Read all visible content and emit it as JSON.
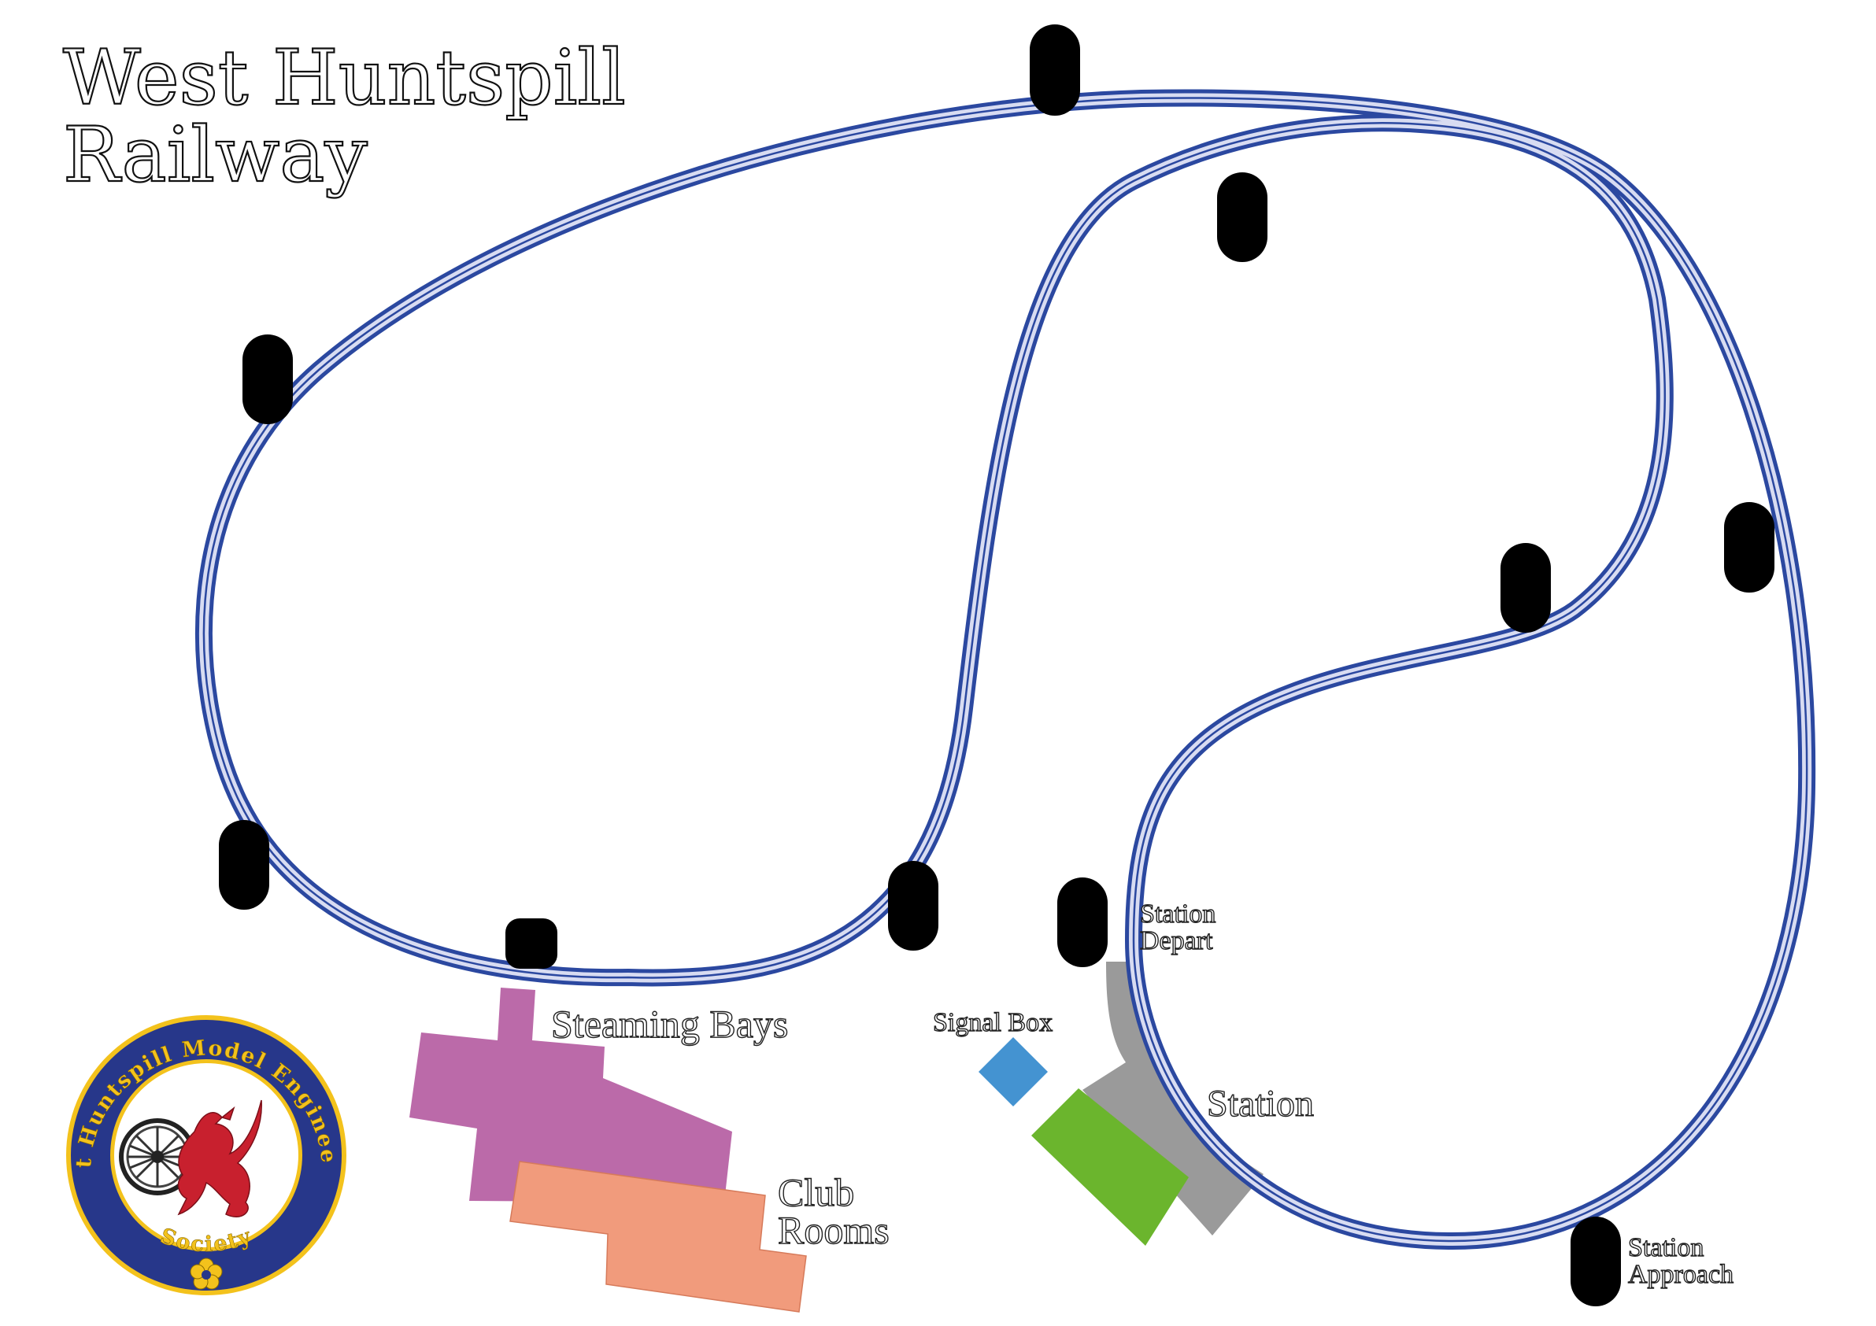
{
  "title": {
    "line1": "West Huntspill",
    "line2": "Railway"
  },
  "labels": {
    "steaming_bays": "Steaming Bays",
    "club_rooms_line1": "Club",
    "club_rooms_line2": "Rooms",
    "signal_box": "Signal Box",
    "station": "Station",
    "station_depart_line1": "Station",
    "station_depart_line2": "Depart",
    "station_approach_line1": "Station",
    "station_approach_line2": "Approach"
  },
  "logo": {
    "text_top": "West Huntspill Model Engineering",
    "text_bottom": "Society",
    "icons": [
      "wheel-icon",
      "dragon-icon",
      "flower-icon"
    ]
  },
  "colors": {
    "track_edge": "#2b48a0",
    "track_fill": "#d8dcf2",
    "marker": "#000000",
    "steaming_bays": "#bb6aa9",
    "club_rooms": "#f19b7c",
    "station_platform": "#999999",
    "station_building": "#6bb52d",
    "signal_box": "#4493d1",
    "logo_ring": "#27378a",
    "logo_gold": "#f3c21c",
    "dragon": "#c8202e"
  }
}
